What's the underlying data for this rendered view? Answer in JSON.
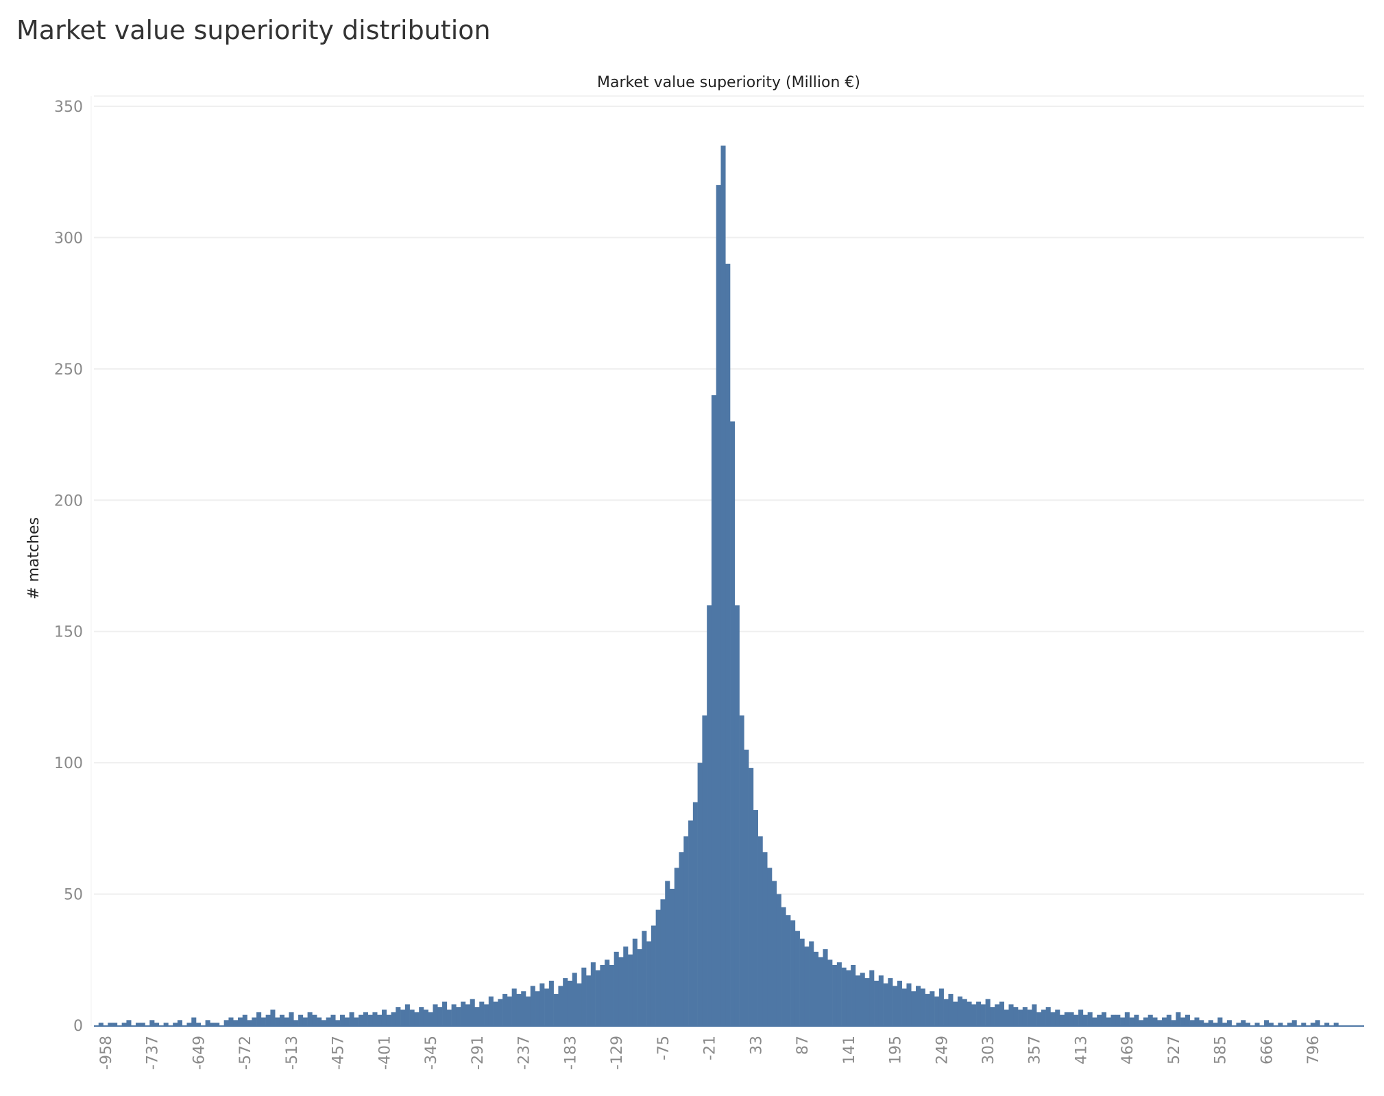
{
  "title": "Market value superiority distribution",
  "chart_data": {
    "type": "bar",
    "title": "Market value superiority distribution",
    "xlabel": "Market value superiority (Million €)",
    "ylabel": "# matches",
    "ylim": [
      0,
      350
    ],
    "yticks": [
      0,
      50,
      100,
      150,
      200,
      250,
      300,
      350
    ],
    "grid": true,
    "color": "#4e77a5",
    "xtick_labels": [
      "-958",
      "-737",
      "-649",
      "-572",
      "-513",
      "-457",
      "-401",
      "-345",
      "-291",
      "-237",
      "-183",
      "-129",
      "-75",
      "-21",
      "33",
      "87",
      "141",
      "195",
      "249",
      "303",
      "357",
      "413",
      "469",
      "527",
      "585",
      "666",
      "796"
    ],
    "values": [
      0,
      1,
      0,
      1,
      1,
      0,
      1,
      2,
      0,
      1,
      1,
      0,
      2,
      1,
      0,
      1,
      0,
      1,
      2,
      0,
      1,
      3,
      1,
      0,
      2,
      1,
      1,
      0,
      2,
      3,
      2,
      3,
      4,
      2,
      3,
      5,
      3,
      4,
      6,
      3,
      4,
      3,
      5,
      2,
      4,
      3,
      5,
      4,
      3,
      2,
      3,
      4,
      2,
      4,
      3,
      5,
      3,
      4,
      5,
      4,
      5,
      4,
      6,
      4,
      5,
      7,
      6,
      8,
      6,
      5,
      7,
      6,
      5,
      8,
      7,
      9,
      6,
      8,
      7,
      9,
      8,
      10,
      7,
      9,
      8,
      11,
      9,
      10,
      12,
      11,
      14,
      12,
      13,
      11,
      15,
      13,
      16,
      14,
      17,
      12,
      15,
      18,
      17,
      20,
      16,
      22,
      19,
      24,
      21,
      23,
      25,
      23,
      28,
      26,
      30,
      27,
      33,
      29,
      36,
      32,
      38,
      44,
      48,
      55,
      52,
      60,
      66,
      72,
      78,
      85,
      100,
      118,
      160,
      240,
      320,
      335,
      290,
      230,
      160,
      118,
      105,
      98,
      82,
      72,
      66,
      60,
      55,
      50,
      45,
      42,
      40,
      36,
      33,
      30,
      32,
      28,
      26,
      29,
      25,
      23,
      24,
      22,
      21,
      23,
      19,
      20,
      18,
      21,
      17,
      19,
      16,
      18,
      15,
      17,
      14,
      16,
      13,
      15,
      14,
      12,
      13,
      11,
      14,
      10,
      12,
      9,
      11,
      10,
      9,
      8,
      9,
      8,
      10,
      7,
      8,
      9,
      6,
      8,
      7,
      6,
      7,
      6,
      8,
      5,
      6,
      7,
      5,
      6,
      4,
      5,
      5,
      4,
      6,
      4,
      5,
      3,
      4,
      5,
      3,
      4,
      4,
      3,
      5,
      3,
      4,
      2,
      3,
      4,
      3,
      2,
      3,
      4,
      2,
      5,
      3,
      4,
      2,
      3,
      2,
      1,
      2,
      1,
      3,
      1,
      2,
      0,
      1,
      2,
      1,
      0,
      1,
      0,
      2,
      1,
      0,
      1,
      0,
      1,
      2,
      0,
      1,
      0,
      1,
      2,
      0,
      1,
      0,
      1,
      0,
      0,
      0,
      0,
      0
    ]
  }
}
